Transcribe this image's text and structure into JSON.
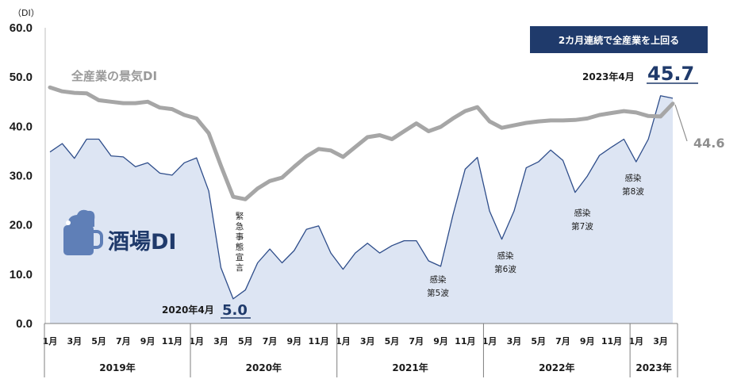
{
  "chart_data": {
    "type": "area",
    "unit_label": "（DI）",
    "ylim": [
      0,
      60
    ],
    "yticks": [
      "0.0",
      "10.0",
      "20.0",
      "30.0",
      "40.0",
      "50.0",
      "60.0"
    ],
    "xtick_labels": [
      "1月",
      "3月",
      "5月",
      "7月",
      "9月",
      "11月",
      "1月",
      "3月",
      "5月",
      "7月",
      "9月",
      "11月",
      "1月",
      "3月",
      "5月",
      "7月",
      "9月",
      "11月",
      "1月",
      "3月",
      "5月",
      "7月",
      "9月",
      "11月",
      "1月",
      "3月"
    ],
    "years": [
      "2019年",
      "2020年",
      "2021年",
      "2022年",
      "2023年"
    ],
    "series": [
      {
        "name": "酒場DI",
        "color": "#2e4d8a",
        "fill": "#dde5f3",
        "values": [
          34.8,
          36.5,
          33.5,
          37.4,
          37.4,
          34.0,
          33.8,
          31.8,
          32.6,
          30.5,
          30.1,
          32.6,
          33.6,
          26.9,
          11.3,
          5.0,
          6.8,
          12.3,
          15.1,
          12.3,
          14.8,
          19.1,
          19.8,
          14.3,
          11.0,
          14.3,
          16.3,
          14.3,
          15.8,
          16.8,
          16.8,
          12.7,
          11.6,
          22.0,
          31.3,
          33.7,
          22.8,
          17.1,
          22.8,
          31.6,
          32.8,
          35.2,
          33.1,
          26.6,
          29.9,
          34.1,
          35.8,
          37.4,
          32.8,
          37.4,
          46.2,
          45.7
        ]
      },
      {
        "name": "全産業の景気DI",
        "color": "#a6a6a6",
        "values": [
          47.9,
          47.1,
          46.8,
          46.7,
          45.3,
          45.0,
          44.7,
          44.7,
          45.0,
          43.8,
          43.5,
          42.3,
          41.6,
          38.6,
          32.0,
          25.7,
          25.2,
          27.4,
          28.9,
          29.6,
          31.8,
          33.9,
          35.4,
          35.1,
          33.8,
          35.8,
          37.8,
          38.2,
          37.4,
          39.0,
          40.6,
          39.0,
          39.9,
          41.6,
          43.1,
          43.9,
          41.0,
          39.7,
          40.2,
          40.7,
          41.0,
          41.2,
          41.2,
          41.3,
          41.6,
          42.3,
          42.7,
          43.1,
          42.8,
          42.1,
          42.0,
          44.6
        ]
      }
    ],
    "annotations": [
      {
        "text": "緊急事態宣言"
      },
      {
        "text": [
          "感染",
          "第5波"
        ]
      },
      {
        "text": [
          "感染",
          "第6波"
        ]
      },
      {
        "text": [
          "感染",
          "第7波"
        ]
      },
      {
        "text": [
          "感染",
          "第8波"
        ]
      }
    ],
    "callouts": {
      "low": {
        "label": "2020年4月",
        "value": "5.0"
      },
      "high": {
        "label": "2023年4月",
        "value": "45.7"
      },
      "all_industry_end": "44.6"
    },
    "banner": "2カ月連続で全産業を上回る",
    "logo_text": "酒場DI",
    "grid": false,
    "legend": "inline labels"
  }
}
